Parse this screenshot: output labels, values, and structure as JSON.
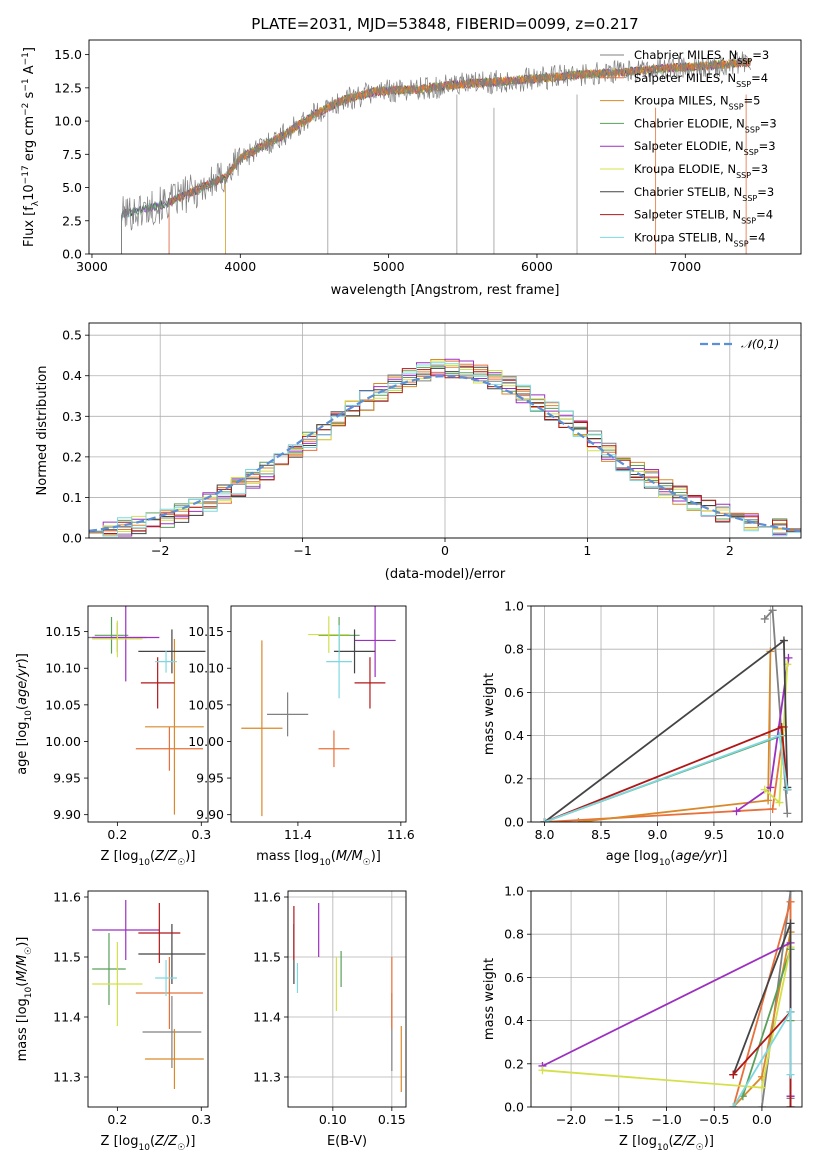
{
  "figure": {
    "title": "PLATE=2031, MJD=53848, FIBERID=0099, z=0.217"
  },
  "models": [
    {
      "name": "Chabrier MILES",
      "nssp": "3",
      "color": "#808080"
    },
    {
      "name": "Salpeter MILES",
      "nssp": "4",
      "color": "#e8703a"
    },
    {
      "name": "Kroupa MILES",
      "nssp": "5",
      "color": "#d9892a"
    },
    {
      "name": "Chabrier ELODIE",
      "nssp": "3",
      "color": "#5aa05a"
    },
    {
      "name": "Salpeter ELODIE",
      "nssp": "3",
      "color": "#9b30c0"
    },
    {
      "name": "Kroupa ELODIE",
      "nssp": "3",
      "color": "#d4e04a"
    },
    {
      "name": "Chabrier STELIB",
      "nssp": "3",
      "color": "#444444"
    },
    {
      "name": "Salpeter STELIB",
      "nssp": "4",
      "color": "#b01818"
    },
    {
      "name": "Kroupa STELIB",
      "nssp": "4",
      "color": "#7fd8e0"
    }
  ],
  "chart_data": [
    {
      "id": "spectrum",
      "type": "line",
      "xlabel": "wavelength [Angstrom, rest frame]",
      "ylabel": "Flux [f_λ10^-17 erg cm^-2 s^-1 A^-1]",
      "xlim": [
        2980,
        7780
      ],
      "ylim": [
        0,
        16.1
      ],
      "xticks": [
        3000,
        4000,
        5000,
        6000,
        7000
      ],
      "yticks": [
        0.0,
        2.5,
        5.0,
        7.5,
        10.0,
        12.5,
        15.0
      ],
      "grid": false,
      "legend": "top-right",
      "continuum": {
        "x": [
          3200,
          3300,
          3500,
          3700,
          3900,
          4000,
          4300,
          4500,
          4700,
          4900,
          5000,
          5200,
          5500,
          5800,
          6000,
          6300,
          6600,
          6900,
          7200,
          7400
        ],
        "y": [
          3.0,
          3.2,
          3.8,
          4.8,
          5.8,
          7.2,
          9.0,
          10.5,
          11.6,
          12.2,
          12.3,
          12.4,
          12.8,
          13.0,
          13.2,
          13.5,
          13.7,
          14.0,
          14.2,
          14.4
        ]
      }
    },
    {
      "id": "residuals",
      "type": "line",
      "xlabel": "(data-model)/error",
      "ylabel": "Normed distribution",
      "xlim": [
        -2.5,
        2.5
      ],
      "ylim": [
        0,
        0.53
      ],
      "xticks": [
        -2,
        -1,
        0,
        1,
        2
      ],
      "yticks": [
        0.0,
        0.1,
        0.2,
        0.3,
        0.4,
        0.5
      ],
      "grid": true,
      "legend": "top-right",
      "reference_label": "𝒩(0,1)",
      "reference_color": "#5b8fd6"
    },
    {
      "id": "age-vs-Z",
      "type": "scatter",
      "xlabel": "Z [log10(Z/Z☉)]",
      "ylabel": "age  [log10(age/yr)]",
      "xlim": [
        0.165,
        0.308
      ],
      "ylim": [
        9.89,
        10.185
      ],
      "xticks": [
        0.2,
        0.3
      ],
      "yticks": [
        9.9,
        9.95,
        10.0,
        10.05,
        10.1,
        10.15
      ],
      "grid": false,
      "points": [
        {
          "x": 0.2,
          "y": 10.142,
          "xerr": 0.035,
          "yerr": 0.02
        },
        {
          "x": 0.262,
          "y": 9.99,
          "xerr": 0.04,
          "yerr": 0.03
        },
        {
          "x": 0.268,
          "y": 10.02,
          "xerr": 0.035,
          "yerr": 0.12
        },
        {
          "x": 0.193,
          "y": 10.145,
          "xerr": 0.02,
          "yerr": 0.025
        },
        {
          "x": 0.21,
          "y": 10.142,
          "xerr": 0.04,
          "yerr": 0.06
        },
        {
          "x": 0.2,
          "y": 10.14,
          "xerr": 0.03,
          "yerr": 0.025
        },
        {
          "x": 0.265,
          "y": 10.123,
          "xerr": 0.04,
          "yerr": 0.03
        },
        {
          "x": 0.248,
          "y": 10.08,
          "xerr": 0.02,
          "yerr": 0.035
        },
        {
          "x": 0.258,
          "y": 10.109,
          "xerr": 0.013,
          "yerr": 0.015
        }
      ]
    },
    {
      "id": "age-vs-mass",
      "type": "scatter",
      "xlabel": "mass [log10(M/M☉)]",
      "ylabel": "",
      "xlim": [
        11.27,
        11.61
      ],
      "ylim": [
        9.89,
        10.185
      ],
      "xticks": [
        11.4,
        11.6
      ],
      "yticks": [
        9.9,
        9.95,
        10.0,
        10.05,
        10.1,
        10.15
      ],
      "grid": false,
      "points": [
        {
          "x": 11.38,
          "y": 10.037,
          "xerr": 0.04,
          "yerr": 0.03
        },
        {
          "x": 11.47,
          "y": 9.99,
          "xerr": 0.03,
          "yerr": 0.025
        },
        {
          "x": 11.33,
          "y": 10.018,
          "xerr": 0.04,
          "yerr": 0.12
        },
        {
          "x": 11.48,
          "y": 10.145,
          "xerr": 0.04,
          "yerr": 0.025
        },
        {
          "x": 11.55,
          "y": 10.138,
          "xerr": 0.04,
          "yerr": 0.05
        },
        {
          "x": 11.46,
          "y": 10.146,
          "xerr": 0.04,
          "yerr": 0.025
        },
        {
          "x": 11.51,
          "y": 10.123,
          "xerr": 0.04,
          "yerr": 0.03
        },
        {
          "x": 11.54,
          "y": 10.08,
          "xerr": 0.03,
          "yerr": 0.035
        },
        {
          "x": 11.48,
          "y": 10.109,
          "xerr": 0.025,
          "yerr": 0.05
        }
      ]
    },
    {
      "id": "weights-vs-age",
      "type": "line",
      "xlabel": "age  [log10(age/yr)]",
      "ylabel": "mass weight",
      "xlim": [
        7.88,
        10.28
      ],
      "ylim": [
        0,
        1.0
      ],
      "xticks": [
        8.0,
        8.5,
        9.0,
        9.5,
        10.0
      ],
      "yticks": [
        0.0,
        0.2,
        0.4,
        0.6,
        0.8,
        1.0
      ],
      "grid": true
    },
    {
      "id": "mass-vs-Z",
      "type": "scatter",
      "xlabel": "Z [log10(Z/Z☉)]",
      "ylabel": "mass [log10(M/M☉)]",
      "xlim": [
        0.165,
        0.308
      ],
      "ylim": [
        11.25,
        11.61
      ],
      "xticks": [
        0.2,
        0.3
      ],
      "yticks": [
        11.3,
        11.4,
        11.5,
        11.6
      ],
      "grid": false,
      "points": [
        {
          "x": 0.265,
          "y": 11.375,
          "xerr": 0.035,
          "yerr": 0.06
        },
        {
          "x": 0.262,
          "y": 11.44,
          "xerr": 0.04,
          "yerr": 0.06
        },
        {
          "x": 0.268,
          "y": 11.33,
          "xerr": 0.035,
          "yerr": 0.05
        },
        {
          "x": 0.19,
          "y": 11.48,
          "xerr": 0.02,
          "yerr": 0.06
        },
        {
          "x": 0.21,
          "y": 11.545,
          "xerr": 0.04,
          "yerr": 0.05
        },
        {
          "x": 0.2,
          "y": 11.455,
          "xerr": 0.03,
          "yerr": 0.07
        },
        {
          "x": 0.265,
          "y": 11.505,
          "xerr": 0.04,
          "yerr": 0.05
        },
        {
          "x": 0.25,
          "y": 11.54,
          "xerr": 0.025,
          "yerr": 0.05
        },
        {
          "x": 0.258,
          "y": 11.465,
          "xerr": 0.013,
          "yerr": 0.03
        }
      ]
    },
    {
      "id": "mass-vs-ebv",
      "type": "scatter",
      "xlabel": "E(B-V)",
      "ylabel": "",
      "xlim": [
        0.062,
        0.162
      ],
      "ylim": [
        11.25,
        11.61
      ],
      "xticks": [
        0.1,
        0.15
      ],
      "yticks": [
        11.3,
        11.4,
        11.5,
        11.6
      ],
      "grid": true,
      "points": [
        {
          "x": 0.15,
          "y": 11.375,
          "yerr": 0.065
        },
        {
          "x": 0.15,
          "y": 11.44,
          "yerr": 0.06
        },
        {
          "x": 0.158,
          "y": 11.33,
          "yerr": 0.055
        },
        {
          "x": 0.107,
          "y": 11.48,
          "yerr": 0.03
        },
        {
          "x": 0.088,
          "y": 11.545,
          "yerr": 0.045
        },
        {
          "x": 0.103,
          "y": 11.455,
          "yerr": 0.045
        },
        {
          "x": 0.067,
          "y": 11.505,
          "yerr": 0.05
        },
        {
          "x": 0.067,
          "y": 11.54,
          "yerr": 0.045
        },
        {
          "x": 0.07,
          "y": 11.465,
          "yerr": 0.025
        }
      ]
    },
    {
      "id": "weights-vs-Z",
      "type": "line",
      "xlabel": "Z [log10(Z/Z☉)]",
      "ylabel": "mass weight",
      "xlim": [
        -2.42,
        0.42
      ],
      "ylim": [
        0,
        1.0
      ],
      "xticks": [
        -2.0,
        -1.5,
        -1.0,
        -0.5,
        0.0
      ],
      "yticks": [
        0.0,
        0.2,
        0.4,
        0.6,
        0.8,
        1.0
      ],
      "grid": true
    }
  ]
}
